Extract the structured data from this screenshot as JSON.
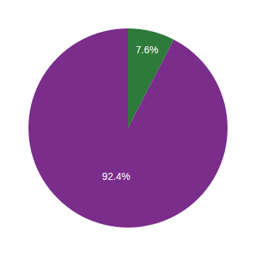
{
  "chart_data": {
    "type": "pie",
    "values": [
      7.6,
      92.4
    ],
    "value_labels": [
      "7.6%",
      "92.4%"
    ],
    "colors": [
      "#2d7a3a",
      "#7b2d8b"
    ],
    "data_labels": true
  }
}
